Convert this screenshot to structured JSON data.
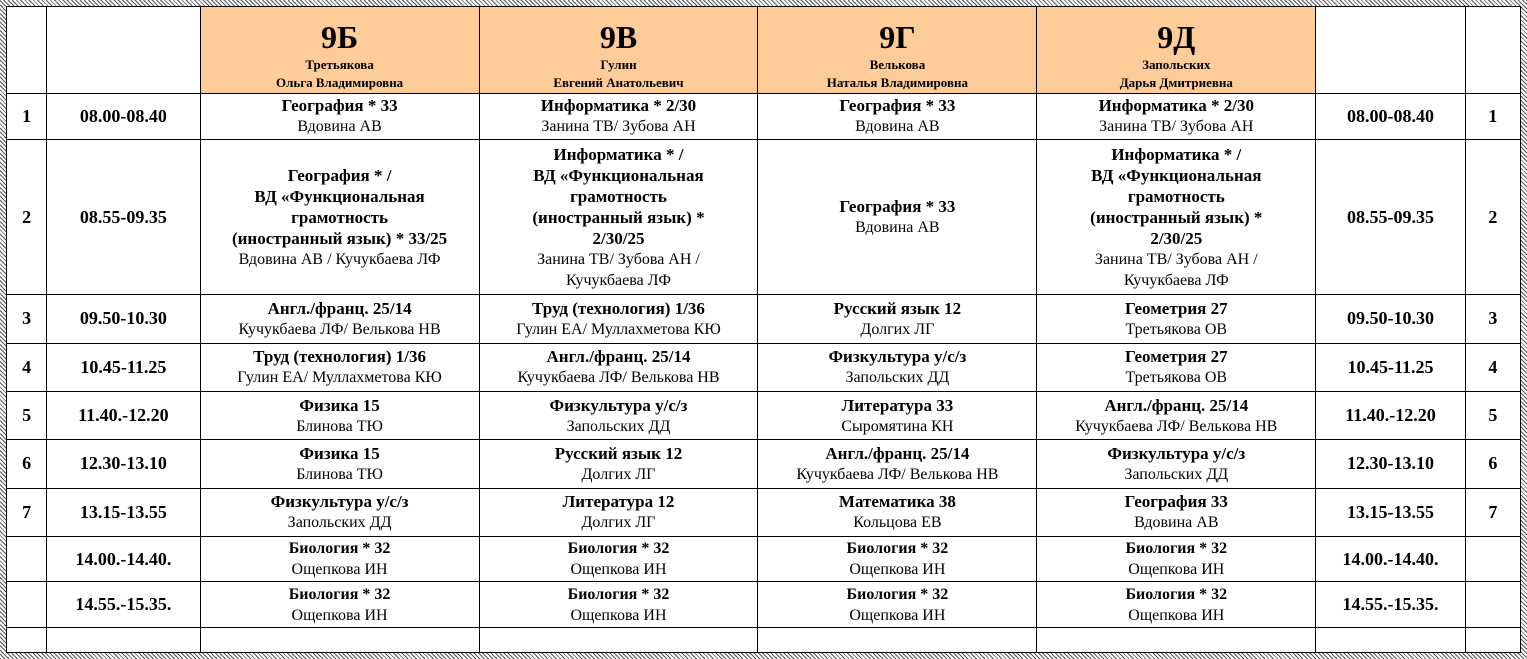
{
  "classes": [
    {
      "name": "9Б",
      "teacher_last": "Третьякова",
      "teacher_first": "Ольга Владимировна"
    },
    {
      "name": "9В",
      "teacher_last": "Гулин",
      "teacher_first": "Евгений Анатольевич"
    },
    {
      "name": "9Г",
      "teacher_last": "Велькова",
      "teacher_first": "Наталья Владимировна"
    },
    {
      "name": "9Д",
      "teacher_last": "Запольских",
      "teacher_first": "Дарья Дмитриевна"
    }
  ],
  "rows": [
    {
      "num": "1",
      "time": "08.00-08.40",
      "lessons": [
        {
          "subject": [
            "География * 33"
          ],
          "teacher": [
            "Вдовина АВ"
          ]
        },
        {
          "subject": [
            "Информатика * 2/30"
          ],
          "teacher": [
            "Занина ТВ/ Зубова АН"
          ]
        },
        {
          "subject": [
            "География * 33"
          ],
          "teacher": [
            "Вдовина АВ"
          ]
        },
        {
          "subject": [
            "Информатика * 2/30"
          ],
          "teacher": [
            "Занина ТВ/ Зубова АН"
          ]
        }
      ]
    },
    {
      "num": "2",
      "time": "08.55-09.35",
      "lessons": [
        {
          "subject": [
            "География * /",
            "ВД «Функциональная",
            "грамотность",
            "(иностранный язык) * 33/25"
          ],
          "teacher": [
            "Вдовина АВ / Кучукбаева ЛФ"
          ]
        },
        {
          "subject": [
            "Информатика * /",
            "ВД «Функциональная",
            "грамотность",
            "(иностранный язык) *",
            "2/30/25"
          ],
          "teacher": [
            "Занина ТВ/ Зубова АН /",
            "Кучукбаева ЛФ"
          ]
        },
        {
          "subject": [
            "География * 33"
          ],
          "teacher": [
            "Вдовина АВ"
          ]
        },
        {
          "subject": [
            "Информатика * /",
            "ВД «Функциональная",
            "грамотность",
            "(иностранный язык) *",
            "2/30/25"
          ],
          "teacher": [
            "Занина ТВ/ Зубова АН /",
            "Кучукбаева ЛФ"
          ]
        }
      ]
    },
    {
      "num": "3",
      "time": "09.50-10.30",
      "lessons": [
        {
          "subject": [
            "Англ./франц. 25/14"
          ],
          "teacher": [
            "Кучукбаева ЛФ/ Велькова НВ"
          ]
        },
        {
          "subject": [
            "Труд (технология) 1/36"
          ],
          "teacher": [
            "Гулин ЕА/ Муллахметова КЮ"
          ]
        },
        {
          "subject": [
            "Русский язык 12"
          ],
          "teacher": [
            "Долгих ЛГ"
          ]
        },
        {
          "subject": [
            "Геометрия 27"
          ],
          "teacher": [
            "Третьякова ОВ"
          ]
        }
      ]
    },
    {
      "num": "4",
      "time": "10.45-11.25",
      "lessons": [
        {
          "subject": [
            "Труд (технология) 1/36"
          ],
          "teacher": [
            "Гулин ЕА/ Муллахметова КЮ"
          ]
        },
        {
          "subject": [
            "Англ./франц. 25/14"
          ],
          "teacher": [
            "Кучукбаева ЛФ/ Велькова НВ"
          ]
        },
        {
          "subject": [
            "Физкультура у/с/з"
          ],
          "teacher": [
            "Запольских ДД"
          ]
        },
        {
          "subject": [
            "Геометрия 27"
          ],
          "teacher": [
            "Третьякова ОВ"
          ]
        }
      ]
    },
    {
      "num": "5",
      "time": "11.40.-12.20",
      "lessons": [
        {
          "subject": [
            "Физика 15"
          ],
          "teacher": [
            "Блинова ТЮ"
          ]
        },
        {
          "subject": [
            "Физкультура у/с/з"
          ],
          "teacher": [
            "Запольских ДД"
          ]
        },
        {
          "subject": [
            "Литература 33"
          ],
          "teacher": [
            "Сыромятина КН"
          ]
        },
        {
          "subject": [
            "Англ./франц. 25/14"
          ],
          "teacher": [
            "Кучукбаева ЛФ/ Велькова НВ"
          ]
        }
      ]
    },
    {
      "num": "6",
      "time": "12.30-13.10",
      "lessons": [
        {
          "subject": [
            "Физика 15"
          ],
          "teacher": [
            "Блинова ТЮ"
          ]
        },
        {
          "subject": [
            "Русский язык 12"
          ],
          "teacher": [
            "Долгих ЛГ"
          ]
        },
        {
          "subject": [
            "Англ./франц. 25/14"
          ],
          "teacher": [
            "Кучукбаева ЛФ/ Велькова НВ"
          ]
        },
        {
          "subject": [
            "Физкультура у/с/з"
          ],
          "teacher": [
            "Запольских ДД"
          ]
        }
      ]
    },
    {
      "num": "7",
      "time": "13.15-13.55",
      "lessons": [
        {
          "subject": [
            "Физкультура у/с/з"
          ],
          "teacher": [
            "Запольских ДД"
          ]
        },
        {
          "subject": [
            "Литература 12"
          ],
          "teacher": [
            "Долгих ЛГ"
          ]
        },
        {
          "subject": [
            "Математика 38"
          ],
          "teacher": [
            "Кольцова ЕВ"
          ]
        },
        {
          "subject": [
            "География 33"
          ],
          "teacher": [
            "Вдовина АВ"
          ]
        }
      ]
    },
    {
      "num": "",
      "time": "14.00.-14.40.",
      "small": true,
      "lessons": [
        {
          "subject": [
            "Биология * 32"
          ],
          "teacher": [
            "Ощепкова ИН"
          ]
        },
        {
          "subject": [
            "Биология * 32"
          ],
          "teacher": [
            "Ощепкова ИН"
          ]
        },
        {
          "subject": [
            "Биология * 32"
          ],
          "teacher": [
            "Ощепкова ИН"
          ]
        },
        {
          "subject": [
            "Биология * 32"
          ],
          "teacher": [
            "Ощепкова ИН"
          ]
        }
      ]
    },
    {
      "num": "",
      "time": "14.55.-15.35.",
      "small": true,
      "lessons": [
        {
          "subject": [
            "Биология * 32"
          ],
          "teacher": [
            "Ощепкова ИН"
          ]
        },
        {
          "subject": [
            "Биология * 32"
          ],
          "teacher": [
            "Ощепкова ИН"
          ]
        },
        {
          "subject": [
            "Биология * 32"
          ],
          "teacher": [
            "Ощепкова ИН"
          ]
        },
        {
          "subject": [
            "Биология * 32"
          ],
          "teacher": [
            "Ощепкова ИН"
          ]
        }
      ]
    }
  ]
}
